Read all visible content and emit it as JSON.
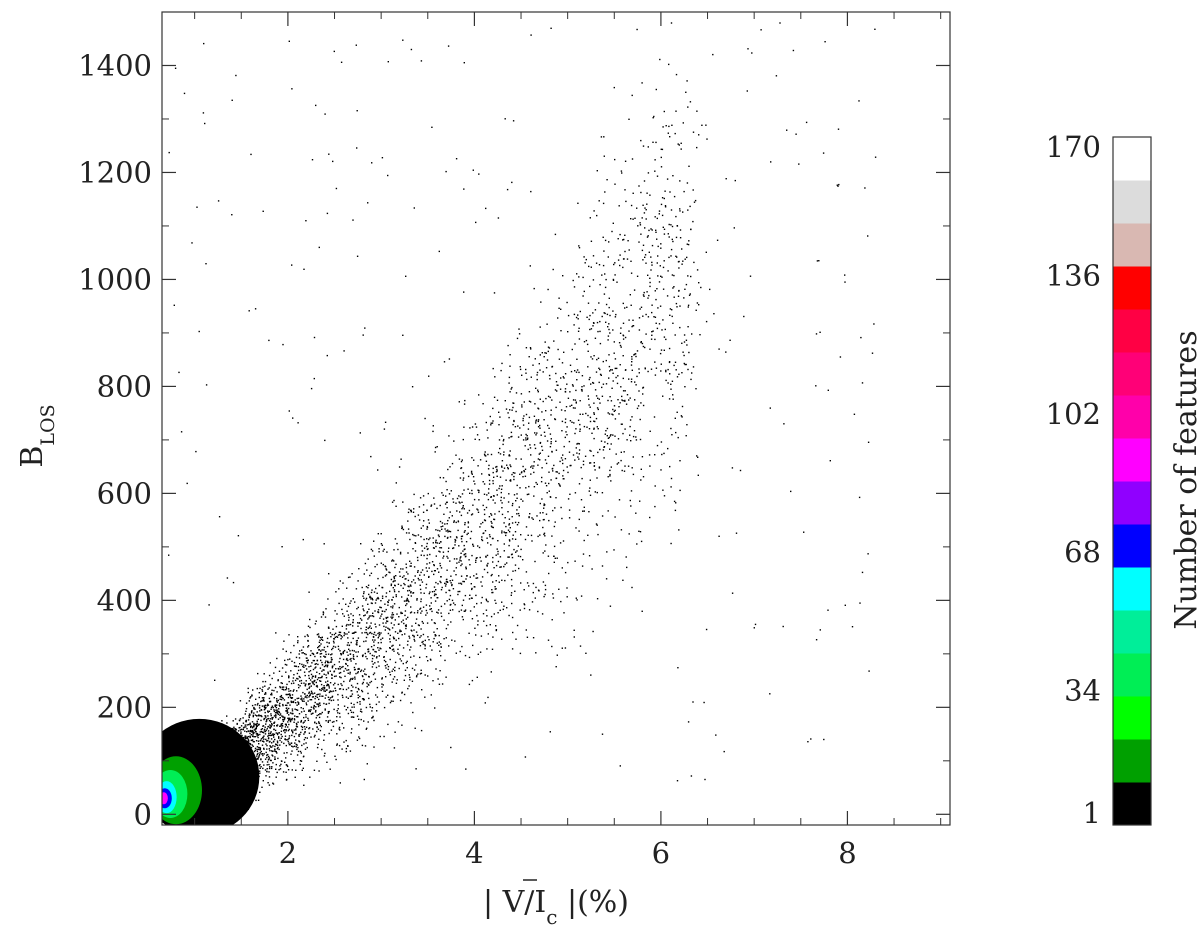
{
  "chart_data": {
    "type": "heatmap",
    "subtype": "2D density scatter (2D histogram)",
    "title": "",
    "xlabel": "| V/Ī_c |(%)",
    "xlabel_parts": {
      "pre": "| V/",
      "I": "I",
      "sub": "c",
      "post": " |(%)"
    },
    "ylabel": "B_LOS",
    "ylabel_parts": {
      "main": "B",
      "sub": "LOS"
    },
    "xlim": [
      0.65,
      9.1
    ],
    "ylim": [
      -20,
      1500
    ],
    "xticks": [
      2,
      4,
      6,
      8
    ],
    "xtick_labels": [
      "2",
      "4",
      "6",
      "8"
    ],
    "yticks": [
      0,
      200,
      400,
      600,
      800,
      1000,
      1200,
      1400
    ],
    "ytick_labels": [
      "0",
      "200",
      "400",
      "600",
      "800",
      "1000",
      "1200",
      "1400"
    ],
    "grid": false,
    "density_summary": {
      "peak_x": 0.7,
      "peak_y": 30,
      "trend": "points spread from a dense core near (0.7, 30) along a broad band rising toward (4-6, 600-1100)"
    },
    "colorbar": {
      "label": "Number of features",
      "ticks": [
        1,
        34,
        68,
        102,
        136,
        170
      ],
      "tick_labels": [
        "1",
        "34",
        "68",
        "102",
        "136",
        "170"
      ],
      "range": [
        1,
        170
      ],
      "colors": [
        "#000000",
        "#00a000",
        "#00ff00",
        "#00ee55",
        "#00ee99",
        "#00ffff",
        "#0000ff",
        "#9000ff",
        "#ff00ff",
        "#ff00aa",
        "#ff0077",
        "#ff0044",
        "#ff0000",
        "#d9b8b2",
        "#dcdcdc",
        "#ffffff"
      ]
    }
  }
}
